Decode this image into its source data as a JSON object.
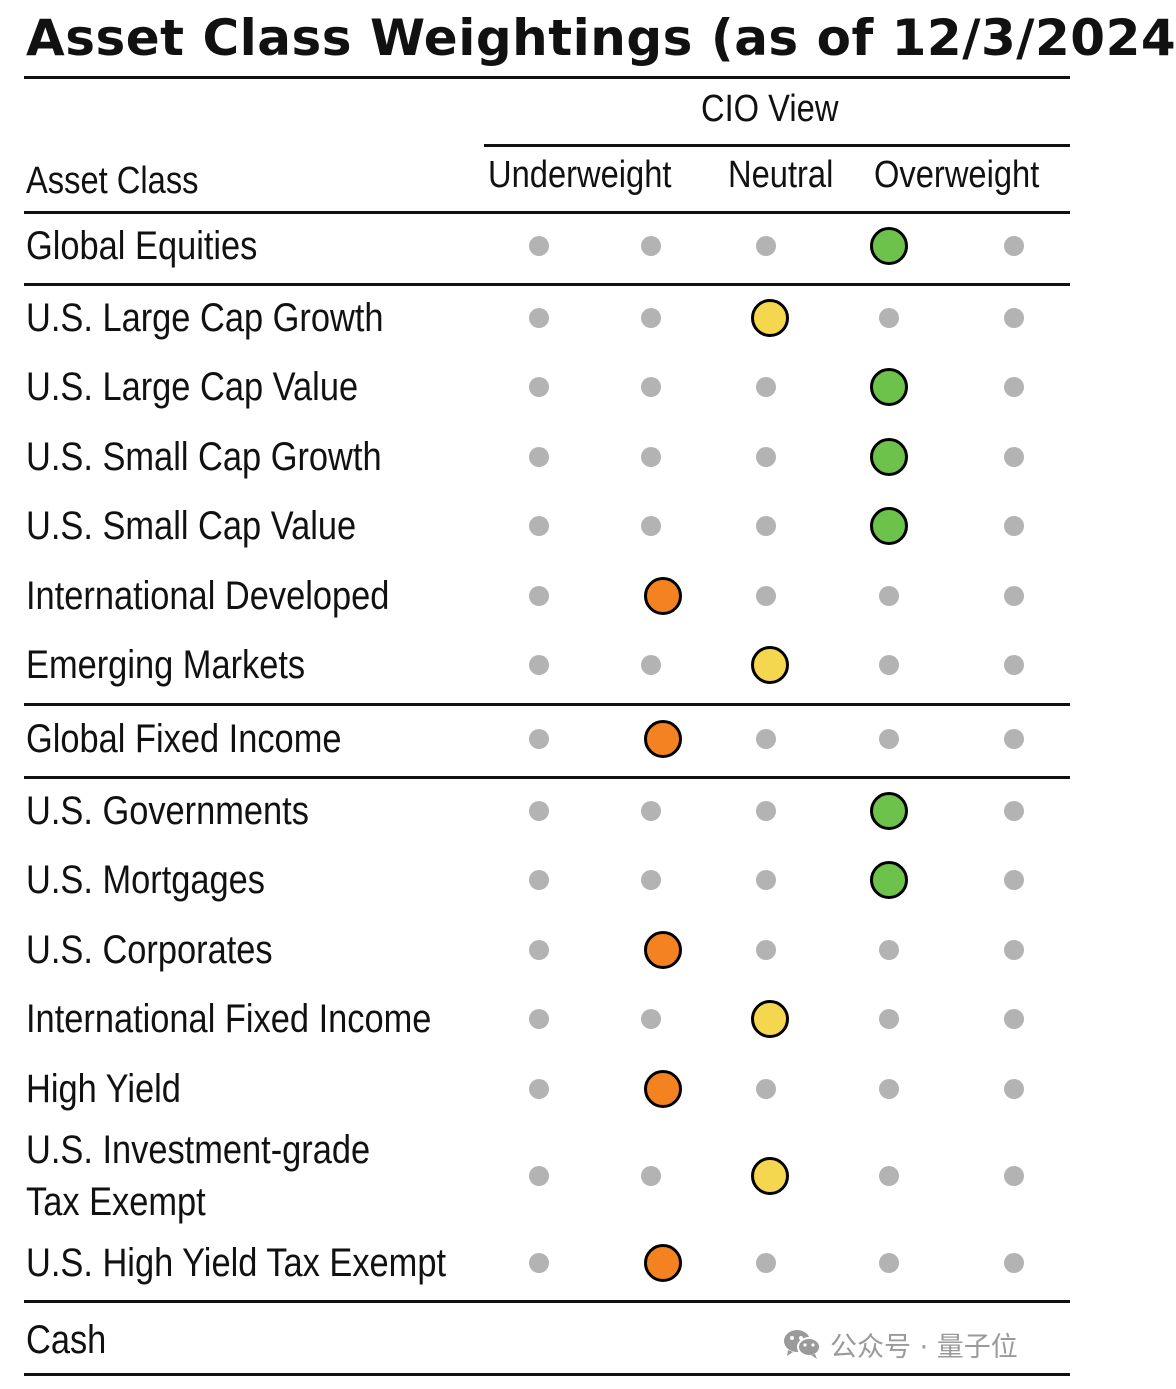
{
  "title": "Asset Class Weightings (as of 12/3/2024",
  "header": {
    "cio_view": "CIO View",
    "asset_class": "Asset Class",
    "underweight": "Underweight",
    "neutral": "Neutral",
    "overweight": "Overweight"
  },
  "colors": {
    "green": "#6cc24a",
    "yellow": "#f5d64f",
    "orange": "#f58220",
    "gray_dot": "#b3b3b3"
  },
  "scale_note": "positions 1-5: 1-2 underweight, 3 neutral, 4-5 overweight",
  "rows": [
    {
      "label": "Global Equities",
      "position": 4,
      "color": "green"
    },
    {
      "label": "U.S. Large Cap Growth",
      "position": 3,
      "color": "yellow"
    },
    {
      "label": "U.S. Large Cap Value",
      "position": 4,
      "color": "green"
    },
    {
      "label": "U.S. Small Cap Growth",
      "position": 4,
      "color": "green"
    },
    {
      "label": "U.S. Small Cap Value",
      "position": 4,
      "color": "green"
    },
    {
      "label": "International Developed",
      "position": 2,
      "color": "orange"
    },
    {
      "label": "Emerging Markets",
      "position": 3,
      "color": "yellow"
    },
    {
      "label": "Global Fixed Income",
      "position": 2,
      "color": "orange"
    },
    {
      "label": "U.S. Governments",
      "position": 4,
      "color": "green"
    },
    {
      "label": "U.S. Mortgages",
      "position": 4,
      "color": "green"
    },
    {
      "label": "U.S. Corporates",
      "position": 2,
      "color": "orange"
    },
    {
      "label": "International Fixed Income",
      "position": 3,
      "color": "yellow"
    },
    {
      "label": "High Yield",
      "position": 2,
      "color": "orange"
    },
    {
      "label": "U.S. Investment-grade",
      "label2": "Tax Exempt",
      "position": 3,
      "color": "yellow"
    },
    {
      "label": "U.S. High Yield Tax Exempt",
      "position": 2,
      "color": "orange"
    },
    {
      "label": "Cash",
      "position": null,
      "color": null
    }
  ],
  "watermark": {
    "text": "公众号 · 量子位",
    "icon": "wechat-icon"
  }
}
